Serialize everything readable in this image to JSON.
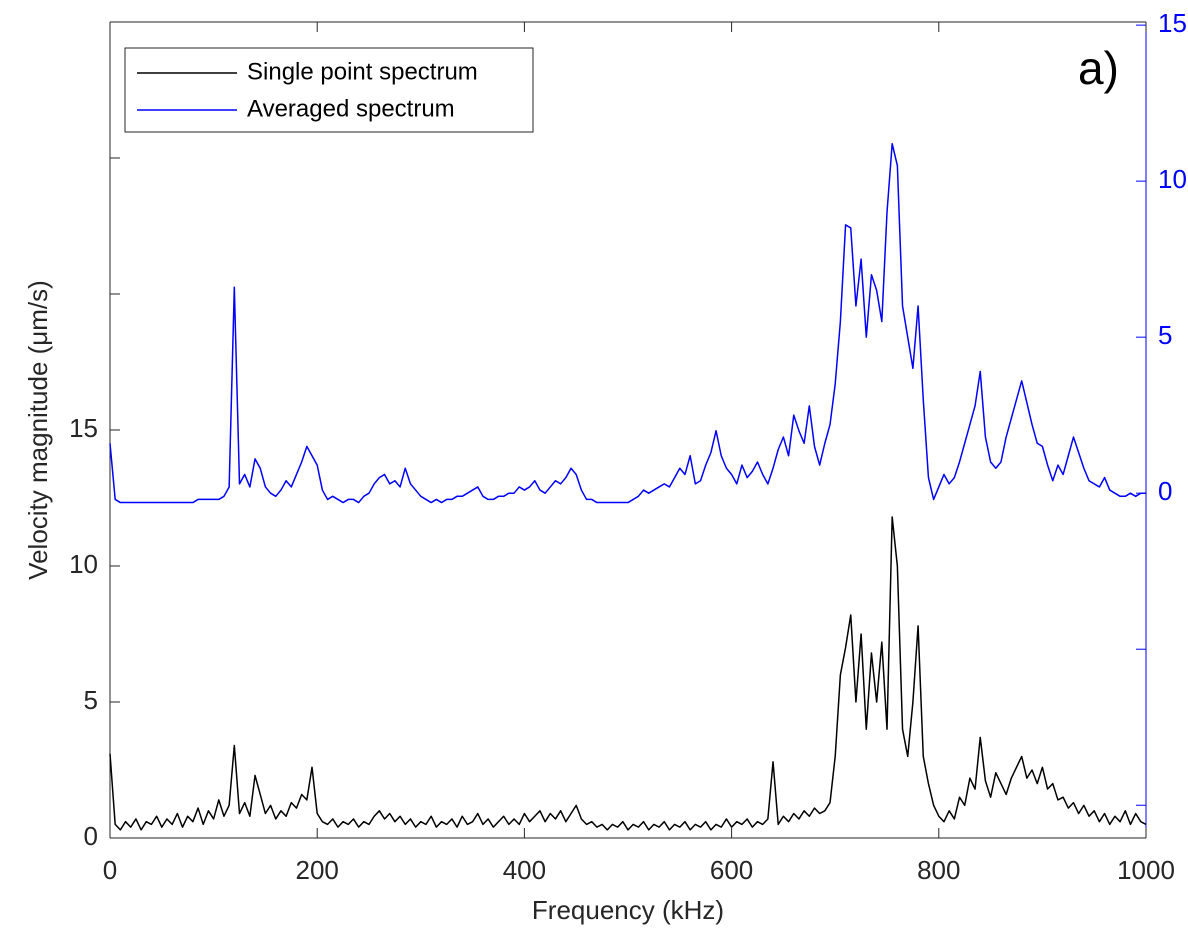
{
  "chart_data": {
    "type": "line",
    "xlabel": "Frequency (kHz)",
    "ylabel": "Velocity magnitude (μm/s)",
    "annotation": "a)",
    "legend": "upper left",
    "xlim": [
      0,
      1000
    ],
    "xticks": [
      0,
      200,
      400,
      600,
      800,
      1000
    ],
    "ylim": [
      0,
      30
    ],
    "yticks": [
      0,
      5,
      10,
      15,
      {
        "value": 20,
        "label": null
      },
      {
        "value": 25,
        "label": null
      },
      {
        "value": 30,
        "label": null
      }
    ],
    "y2lim": [
      -11.05,
      15.1
    ],
    "y2ticks": [
      {
        "value": -10,
        "label": null
      },
      {
        "value": -5,
        "label": null
      },
      0,
      5,
      10,
      15
    ],
    "x": [
      0,
      5,
      10,
      15,
      20,
      25,
      30,
      35,
      40,
      45,
      50,
      55,
      60,
      65,
      70,
      75,
      80,
      85,
      90,
      95,
      100,
      105,
      110,
      115,
      120,
      125,
      130,
      135,
      140,
      145,
      150,
      155,
      160,
      165,
      170,
      175,
      180,
      185,
      190,
      195,
      200,
      205,
      210,
      215,
      220,
      225,
      230,
      235,
      240,
      245,
      250,
      255,
      260,
      265,
      270,
      275,
      280,
      285,
      290,
      295,
      300,
      305,
      310,
      315,
      320,
      325,
      330,
      335,
      340,
      345,
      350,
      355,
      360,
      365,
      370,
      375,
      380,
      385,
      390,
      395,
      400,
      405,
      410,
      415,
      420,
      425,
      430,
      435,
      440,
      445,
      450,
      455,
      460,
      465,
      470,
      475,
      480,
      485,
      490,
      495,
      500,
      505,
      510,
      515,
      520,
      525,
      530,
      535,
      540,
      545,
      550,
      555,
      560,
      565,
      570,
      575,
      580,
      585,
      590,
      595,
      600,
      605,
      610,
      615,
      620,
      625,
      630,
      635,
      640,
      645,
      650,
      655,
      660,
      665,
      670,
      675,
      680,
      685,
      690,
      695,
      700,
      705,
      710,
      715,
      720,
      725,
      730,
      735,
      740,
      745,
      750,
      755,
      760,
      765,
      770,
      775,
      780,
      785,
      790,
      795,
      800,
      805,
      810,
      815,
      820,
      825,
      830,
      835,
      840,
      845,
      850,
      855,
      860,
      865,
      870,
      875,
      880,
      885,
      890,
      895,
      900,
      905,
      910,
      915,
      920,
      925,
      930,
      935,
      940,
      945,
      950,
      955,
      960,
      965,
      970,
      975,
      980,
      985,
      990,
      995,
      1000
    ],
    "series": [
      {
        "name": "Single point spectrum",
        "color": "#000000",
        "axis": "y",
        "values": [
          3.1,
          0.5,
          0.3,
          0.6,
          0.4,
          0.7,
          0.3,
          0.6,
          0.5,
          0.8,
          0.4,
          0.7,
          0.5,
          0.9,
          0.4,
          0.8,
          0.6,
          1.1,
          0.5,
          1.0,
          0.7,
          1.4,
          0.8,
          1.2,
          3.4,
          0.9,
          1.3,
          0.8,
          2.3,
          1.6,
          0.9,
          1.2,
          0.7,
          1.0,
          0.8,
          1.3,
          1.1,
          1.6,
          1.4,
          2.6,
          0.9,
          0.6,
          0.5,
          0.7,
          0.4,
          0.6,
          0.5,
          0.7,
          0.4,
          0.6,
          0.5,
          0.8,
          1.0,
          0.7,
          0.9,
          0.6,
          0.8,
          0.5,
          0.7,
          0.4,
          0.6,
          0.5,
          0.8,
          0.4,
          0.6,
          0.5,
          0.7,
          0.4,
          0.8,
          0.5,
          0.6,
          0.9,
          0.5,
          0.7,
          0.4,
          0.6,
          0.8,
          0.5,
          0.7,
          0.5,
          0.9,
          0.6,
          0.8,
          1.0,
          0.6,
          0.9,
          0.7,
          1.0,
          0.6,
          0.9,
          1.2,
          0.7,
          0.5,
          0.6,
          0.4,
          0.5,
          0.3,
          0.5,
          0.4,
          0.6,
          0.3,
          0.5,
          0.4,
          0.6,
          0.3,
          0.5,
          0.4,
          0.6,
          0.3,
          0.5,
          0.4,
          0.6,
          0.3,
          0.5,
          0.4,
          0.6,
          0.3,
          0.5,
          0.4,
          0.7,
          0.4,
          0.6,
          0.5,
          0.7,
          0.4,
          0.6,
          0.5,
          0.7,
          2.8,
          0.5,
          0.8,
          0.6,
          0.9,
          0.7,
          1.0,
          0.8,
          1.1,
          0.9,
          1.0,
          1.3,
          3.0,
          6.0,
          7.0,
          8.2,
          5.0,
          7.5,
          4.0,
          6.8,
          5.0,
          7.2,
          4.0,
          11.8,
          10.0,
          4.0,
          3.0,
          5.0,
          7.8,
          3.0,
          2.0,
          1.2,
          0.8,
          0.6,
          1.0,
          0.7,
          1.5,
          1.2,
          2.2,
          1.8,
          3.7,
          2.1,
          1.5,
          2.4,
          2.0,
          1.6,
          2.2,
          2.6,
          3.0,
          2.2,
          2.5,
          2.0,
          2.6,
          1.8,
          2.0,
          1.4,
          1.5,
          1.1,
          1.3,
          0.9,
          1.2,
          0.8,
          1.0,
          0.6,
          0.9,
          0.5,
          0.8,
          0.6,
          1.0,
          0.5,
          0.9,
          0.6,
          0.5
        ]
      },
      {
        "name": "Averaged spectrum",
        "color": "#0000ff",
        "axis": "y2",
        "values": [
          1.6,
          -0.2,
          -0.3,
          -0.3,
          -0.3,
          -0.3,
          -0.3,
          -0.3,
          -0.3,
          -0.3,
          -0.3,
          -0.3,
          -0.3,
          -0.3,
          -0.3,
          -0.3,
          -0.3,
          -0.2,
          -0.2,
          -0.2,
          -0.2,
          -0.2,
          -0.1,
          0.2,
          6.6,
          0.3,
          0.6,
          0.2,
          1.1,
          0.8,
          0.2,
          0.0,
          -0.1,
          0.1,
          0.4,
          0.2,
          0.6,
          1.0,
          1.5,
          1.2,
          0.9,
          0.1,
          -0.2,
          -0.1,
          -0.2,
          -0.3,
          -0.2,
          -0.2,
          -0.3,
          -0.1,
          0.0,
          0.3,
          0.5,
          0.6,
          0.3,
          0.4,
          0.2,
          0.8,
          0.3,
          0.1,
          -0.1,
          -0.2,
          -0.3,
          -0.2,
          -0.3,
          -0.2,
          -0.2,
          -0.1,
          -0.1,
          0.0,
          0.1,
          0.2,
          -0.1,
          -0.2,
          -0.2,
          -0.1,
          -0.1,
          0.0,
          0.0,
          0.2,
          0.1,
          0.2,
          0.4,
          0.1,
          0.0,
          0.2,
          0.4,
          0.3,
          0.5,
          0.8,
          0.6,
          0.1,
          -0.2,
          -0.2,
          -0.3,
          -0.3,
          -0.3,
          -0.3,
          -0.3,
          -0.3,
          -0.3,
          -0.2,
          -0.1,
          0.1,
          0.0,
          0.1,
          0.2,
          0.3,
          0.2,
          0.5,
          0.8,
          0.6,
          1.2,
          0.3,
          0.4,
          0.9,
          1.3,
          2.0,
          1.2,
          0.8,
          0.6,
          0.3,
          0.9,
          0.5,
          0.7,
          1.0,
          0.6,
          0.3,
          0.8,
          1.4,
          1.8,
          1.2,
          2.5,
          2.0,
          1.6,
          2.8,
          1.5,
          0.9,
          1.6,
          2.2,
          3.5,
          5.5,
          8.6,
          8.5,
          6.0,
          7.5,
          5.0,
          7.0,
          6.5,
          5.5,
          9.0,
          11.2,
          10.5,
          6.0,
          5.0,
          4.0,
          6.0,
          3.0,
          0.5,
          -0.2,
          0.2,
          0.6,
          0.3,
          0.5,
          1.0,
          1.6,
          2.2,
          2.8,
          3.9,
          1.8,
          1.0,
          0.8,
          1.0,
          1.8,
          2.4,
          3.0,
          3.6,
          2.9,
          2.2,
          1.6,
          1.5,
          0.9,
          0.4,
          0.9,
          0.6,
          1.2,
          1.8,
          1.3,
          0.8,
          0.4,
          0.3,
          0.2,
          0.5,
          0.1,
          0.0,
          -0.1,
          -0.1,
          0.0,
          -0.1,
          0.0,
          0.0
        ]
      }
    ]
  }
}
